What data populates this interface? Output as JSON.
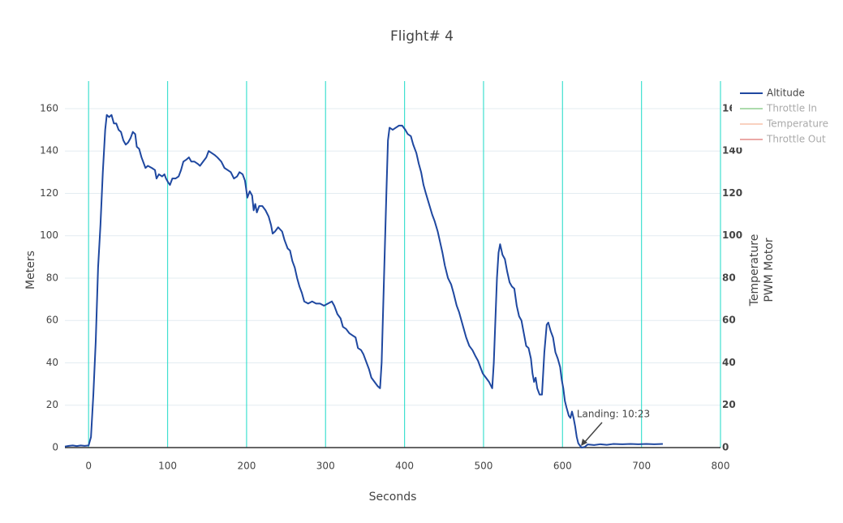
{
  "chart_data": {
    "type": "line",
    "title": "Flight# 4",
    "xlabel": "Seconds",
    "ylabel": "Meters",
    "y2label": [
      "Temperature",
      "PWM Motor"
    ],
    "xlim": [
      -30,
      800
    ],
    "xticks": [
      0,
      100,
      200,
      300,
      400,
      500,
      600,
      700,
      800
    ],
    "ylim": [
      0,
      173
    ],
    "yticks": [
      0,
      20,
      40,
      60,
      80,
      100,
      120,
      140,
      160
    ],
    "y2lim": [
      0,
      173
    ],
    "y2ticks": [
      0,
      20,
      40,
      60,
      80,
      100,
      120,
      140,
      160
    ],
    "grid": true,
    "x_grid_color": "#40e0d0",
    "y_grid_color": "#e3ecf1",
    "legend": "top-right",
    "annotations": [
      {
        "text": "Landing: 10:23"
      }
    ],
    "x": [
      -30,
      -25,
      -20,
      -15,
      -10,
      -5,
      0,
      3,
      6,
      9,
      12,
      15,
      18,
      21,
      23,
      26,
      29,
      32,
      35,
      38,
      41,
      44,
      47,
      50,
      53,
      56,
      59,
      61,
      64,
      67,
      70,
      72,
      75,
      80,
      84,
      86,
      89,
      93,
      96,
      98,
      101,
      103,
      106,
      110,
      114,
      117,
      120,
      124,
      127,
      130,
      134,
      138,
      141,
      145,
      149,
      152,
      156,
      160,
      163,
      168,
      172,
      176,
      180,
      184,
      188,
      191,
      195,
      198,
      201,
      204,
      207,
      209,
      211,
      213,
      216,
      220,
      224,
      228,
      231,
      233,
      236,
      240,
      245,
      248,
      252,
      255,
      258,
      261,
      264,
      267,
      270,
      273,
      278,
      283,
      288,
      293,
      298,
      303,
      308,
      311,
      315,
      319,
      322,
      326,
      330,
      334,
      338,
      341,
      345,
      348,
      352,
      355,
      358,
      362,
      366,
      369,
      371,
      374,
      377,
      379,
      381,
      385,
      389,
      393,
      397,
      401,
      404,
      408,
      411,
      415,
      418,
      421,
      424,
      427,
      431,
      435,
      438,
      442,
      445,
      448,
      451,
      455,
      459,
      462,
      466,
      469,
      472,
      475,
      478,
      482,
      486,
      490,
      493,
      496,
      499,
      503,
      507,
      511,
      513,
      515,
      517,
      519,
      521,
      524,
      527,
      530,
      533,
      536,
      539,
      542,
      545,
      548,
      551,
      554,
      557,
      560,
      562,
      564,
      566,
      568,
      571,
      574,
      577,
      580,
      582,
      585,
      588,
      591,
      594,
      597,
      599,
      601,
      603,
      605,
      608,
      610,
      612,
      614,
      616,
      618,
      620,
      622,
      624,
      628,
      632,
      640,
      648,
      656,
      664,
      676,
      686,
      696,
      706,
      716,
      727
    ],
    "series": [
      {
        "name": "Altitude",
        "color": "#1f48a0",
        "values": [
          0.5,
          0.8,
          1,
          0.7,
          1,
          0.8,
          1,
          5,
          25,
          50,
          85,
          105,
          130,
          150,
          157,
          156,
          157,
          153,
          153,
          150,
          149,
          145,
          143,
          144,
          146,
          149,
          148,
          142,
          141,
          137,
          134,
          132,
          133,
          132,
          131,
          127,
          129,
          128,
          129,
          127,
          125,
          124,
          127,
          127,
          128,
          131,
          135,
          136,
          137,
          135,
          135,
          134,
          133,
          135,
          137,
          140,
          139,
          138,
          137,
          135,
          132,
          131,
          130,
          127,
          128,
          130,
          129,
          126,
          118,
          121,
          119,
          112,
          115,
          111,
          114,
          114,
          112,
          109,
          105,
          101,
          102,
          104,
          102,
          98,
          94,
          93,
          88,
          85,
          80,
          76,
          73,
          69,
          68,
          69,
          68,
          68,
          67,
          68,
          69,
          67,
          63,
          61,
          57,
          56,
          54,
          53,
          52,
          47,
          46,
          44,
          40,
          37,
          33,
          31,
          29,
          28,
          40,
          80,
          120,
          145,
          151,
          150,
          151,
          152,
          152,
          150,
          148,
          147,
          143,
          139,
          134,
          130,
          124,
          120,
          115,
          110,
          107,
          102,
          97,
          92,
          86,
          80,
          77,
          73,
          67,
          64,
          60,
          56,
          52,
          48,
          46,
          43,
          41,
          38,
          35,
          33,
          31,
          28,
          40,
          60,
          80,
          92,
          96,
          91,
          89,
          83,
          78,
          76,
          75,
          67,
          62,
          60,
          54,
          48,
          47,
          42,
          35,
          31,
          33,
          28,
          25,
          25,
          45,
          58,
          59,
          55,
          52,
          45,
          42,
          38,
          32,
          28,
          22,
          19,
          15,
          14,
          17,
          14,
          10,
          5,
          2,
          1,
          0,
          0.3,
          1.5,
          1.2,
          1.6,
          1.3,
          1.7,
          1.6,
          1.7,
          1.6,
          1.7,
          1.6,
          1.7
        ]
      },
      {
        "name": "Throttle In",
        "color": "#5cb85c",
        "axis": "y2",
        "visible": "legendonly"
      },
      {
        "name": "Temperature",
        "color": "#f4a582",
        "axis": "y2",
        "visible": "legendonly"
      },
      {
        "name": "Throttle Out",
        "color": "#d9534f",
        "axis": "y2",
        "visible": "legendonly"
      }
    ]
  }
}
